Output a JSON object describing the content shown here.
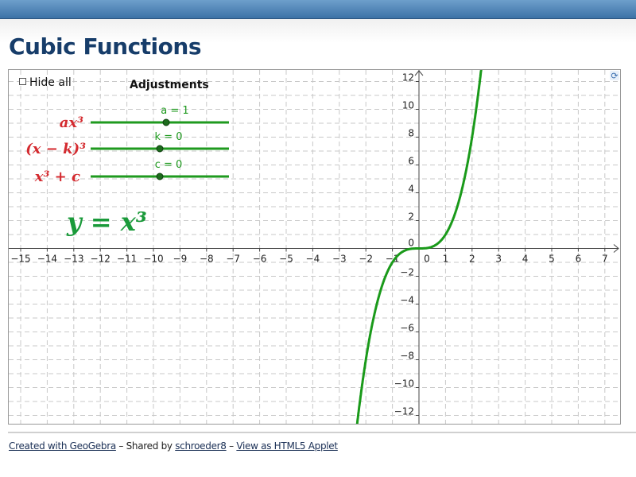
{
  "page": {
    "title": "Cubic Functions"
  },
  "applet": {
    "hide_all_label": "Hide all",
    "hide_all_checked": false,
    "adjustments_title": "Adjustments",
    "sliders": [
      {
        "formula": "ax³",
        "label": "a = 1",
        "value": 1,
        "fraction": 0.55
      },
      {
        "formula": "(x − k)³",
        "label": "k = 0",
        "value": 0,
        "fraction": 0.5
      },
      {
        "formula": "x³ + c",
        "label": "c = 0",
        "value": 0,
        "fraction": 0.5
      }
    ],
    "equation": "y = x³",
    "refresh_icon": "refresh-icon",
    "colors": {
      "curve": "#1a9a1a",
      "slider": "#1f9a1f",
      "formula": "#d42a2f",
      "grid": "#c8c8c8"
    }
  },
  "chart_data": {
    "type": "line",
    "function": "y = x^3",
    "xlim": [
      -15.5,
      7.6
    ],
    "ylim": [
      -12.5,
      12.5
    ],
    "x_ticks": [
      "−15",
      "−14",
      "−13",
      "−12",
      "−11",
      "−10",
      "−9",
      "−8",
      "−7",
      "−6",
      "−5",
      "−4",
      "−3",
      "−2",
      "−1",
      "0",
      "1",
      "2",
      "3",
      "4",
      "5",
      "6",
      "7"
    ],
    "y_ticks": [
      "12",
      "10",
      "8",
      "6",
      "4",
      "2",
      "0",
      "−2",
      "−4",
      "−6",
      "−8",
      "−10",
      "−12"
    ],
    "grid": true
  },
  "footer": {
    "created_with": "Created with GeoGebra",
    "sep1": " – Shared by ",
    "shared_by": "schroeder8",
    "sep2": " – ",
    "html5_link": "View as HTML5 Applet"
  }
}
